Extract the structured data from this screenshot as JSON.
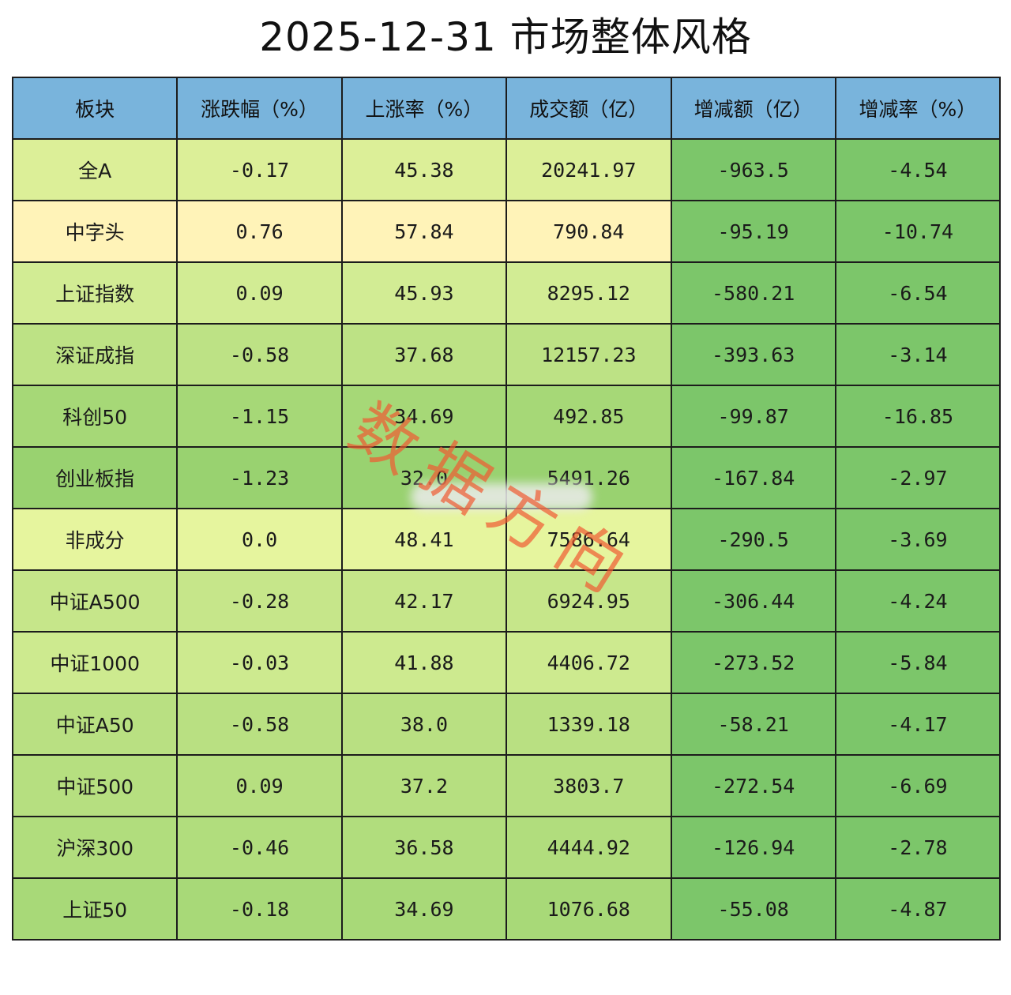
{
  "title": "2025-12-31 市场整体风格",
  "columns": [
    "板块",
    "涨跌幅（%）",
    "上涨率（%）",
    "成交额（亿）",
    "增减额（亿）",
    "增减率（%）"
  ],
  "rows": [
    {
      "name": "全A",
      "change": "-0.17",
      "rise_rate": "45.38",
      "turnover": "20241.97",
      "delta": "-963.5",
      "delta_rate": "-4.54"
    },
    {
      "name": "中字头",
      "change": "0.76",
      "rise_rate": "57.84",
      "turnover": "790.84",
      "delta": "-95.19",
      "delta_rate": "-10.74"
    },
    {
      "name": "上证指数",
      "change": "0.09",
      "rise_rate": "45.93",
      "turnover": "8295.12",
      "delta": "-580.21",
      "delta_rate": "-6.54"
    },
    {
      "name": "深证成指",
      "change": "-0.58",
      "rise_rate": "37.68",
      "turnover": "12157.23",
      "delta": "-393.63",
      "delta_rate": "-3.14"
    },
    {
      "name": "科创50",
      "change": "-1.15",
      "rise_rate": "34.69",
      "turnover": "492.85",
      "delta": "-99.87",
      "delta_rate": "-16.85"
    },
    {
      "name": "创业板指",
      "change": "-1.23",
      "rise_rate": "32.0",
      "turnover": "5491.26",
      "delta": "-167.84",
      "delta_rate": "-2.97"
    },
    {
      "name": "非成分",
      "change": "0.0",
      "rise_rate": "48.41",
      "turnover": "7586.64",
      "delta": "-290.5",
      "delta_rate": "-3.69"
    },
    {
      "name": "中证A500",
      "change": "-0.28",
      "rise_rate": "42.17",
      "turnover": "6924.95",
      "delta": "-306.44",
      "delta_rate": "-4.24"
    },
    {
      "name": "中证1000",
      "change": "-0.03",
      "rise_rate": "41.88",
      "turnover": "4406.72",
      "delta": "-273.52",
      "delta_rate": "-5.84"
    },
    {
      "name": "中证A50",
      "change": "-0.58",
      "rise_rate": "38.0",
      "turnover": "1339.18",
      "delta": "-58.21",
      "delta_rate": "-4.17"
    },
    {
      "name": "中证500",
      "change": "0.09",
      "rise_rate": "37.2",
      "turnover": "3803.7",
      "delta": "-272.54",
      "delta_rate": "-6.69"
    },
    {
      "name": "沪深300",
      "change": "-0.46",
      "rise_rate": "36.58",
      "turnover": "4444.92",
      "delta": "-126.94",
      "delta_rate": "-2.78"
    },
    {
      "name": "上证50",
      "change": "-0.18",
      "rise_rate": "34.69",
      "turnover": "1076.68",
      "delta": "-55.08",
      "delta_rate": "-4.87"
    }
  ],
  "row_colors": [
    [
      "#dcef98",
      "#dcef98",
      "#dcef98",
      "#dcef98",
      "#7cc66a",
      "#7cc66a"
    ],
    [
      "#fff3b8",
      "#fff3b8",
      "#fff3b8",
      "#fff3b8",
      "#7cc66a",
      "#7cc66a"
    ],
    [
      "#d2ec94",
      "#d2ec94",
      "#d2ec94",
      "#d2ec94",
      "#7cc66a",
      "#7cc66a"
    ],
    [
      "#bde285",
      "#bde285",
      "#bde285",
      "#bde285",
      "#7cc66a",
      "#7cc66a"
    ],
    [
      "#a6d877",
      "#a6d877",
      "#a6d877",
      "#a6d877",
      "#7cc66a",
      "#7cc66a"
    ],
    [
      "#99d270",
      "#99d270",
      "#99d270",
      "#99d270",
      "#7cc66a",
      "#7cc66a"
    ],
    [
      "#e6f59e",
      "#e6f59e",
      "#e6f59e",
      "#e6f59e",
      "#7cc66a",
      "#7cc66a"
    ],
    [
      "#c6e68a",
      "#c6e68a",
      "#c6e68a",
      "#c6e68a",
      "#7cc66a",
      "#7cc66a"
    ],
    [
      "#cdea8f",
      "#cdea8f",
      "#cdea8f",
      "#cdea8f",
      "#7cc66a",
      "#7cc66a"
    ],
    [
      "#b9e082",
      "#b9e082",
      "#b9e082",
      "#b9e082",
      "#7cc66a",
      "#7cc66a"
    ],
    [
      "#b6df80",
      "#b6df80",
      "#b6df80",
      "#b6df80",
      "#7cc66a",
      "#7cc66a"
    ],
    [
      "#b1dd7d",
      "#b1dd7d",
      "#b1dd7d",
      "#b1dd7d",
      "#7cc66a",
      "#7cc66a"
    ],
    [
      "#a8d978",
      "#a8d978",
      "#a8d978",
      "#a8d978",
      "#7cc66a",
      "#7cc66a"
    ]
  ],
  "header_color": "#79b4dc",
  "watermark": "数据方向"
}
